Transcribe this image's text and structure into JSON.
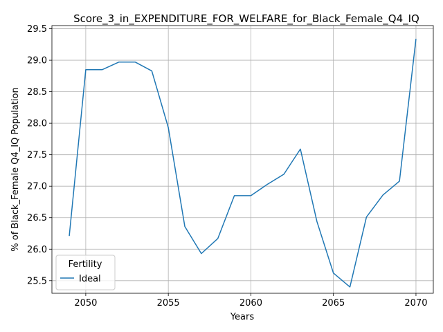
{
  "chart_data": {
    "type": "line",
    "title": "Score_3_in_EXPENDITURE_FOR_WELFARE_for_Black_Female_Q4_IQ",
    "xlabel": "Years",
    "ylabel": "% of Black_Female Q4_IQ Population",
    "xlim": [
      2047.95,
      2071.05
    ],
    "ylim": [
      25.3,
      29.55
    ],
    "xticks": [
      2050,
      2055,
      2060,
      2065,
      2070
    ],
    "xtick_labels": [
      "2050",
      "2055",
      "2060",
      "2065",
      "2070"
    ],
    "yticks": [
      25.5,
      26.0,
      26.5,
      27.0,
      27.5,
      28.0,
      28.5,
      29.0,
      29.5
    ],
    "ytick_labels": [
      "25.5",
      "26.0",
      "26.5",
      "27.0",
      "27.5",
      "28.0",
      "28.5",
      "29.0",
      "29.5"
    ],
    "grid": true,
    "legend": {
      "title": "Fertility",
      "placement": "lower-left"
    },
    "series": [
      {
        "name": "Ideal",
        "color": "#1f77b4",
        "x": [
          2049,
          2050,
          2051,
          2052,
          2053,
          2054,
          2055,
          2056,
          2057,
          2058,
          2059,
          2060,
          2061,
          2062,
          2063,
          2064,
          2065,
          2066,
          2067,
          2068,
          2069,
          2070
        ],
        "y": [
          26.21,
          28.85,
          28.85,
          28.97,
          28.97,
          28.83,
          27.93,
          26.36,
          25.93,
          26.17,
          26.85,
          26.85,
          27.03,
          27.19,
          27.59,
          26.44,
          25.62,
          25.4,
          26.51,
          26.86,
          27.08,
          29.34
        ]
      }
    ]
  }
}
